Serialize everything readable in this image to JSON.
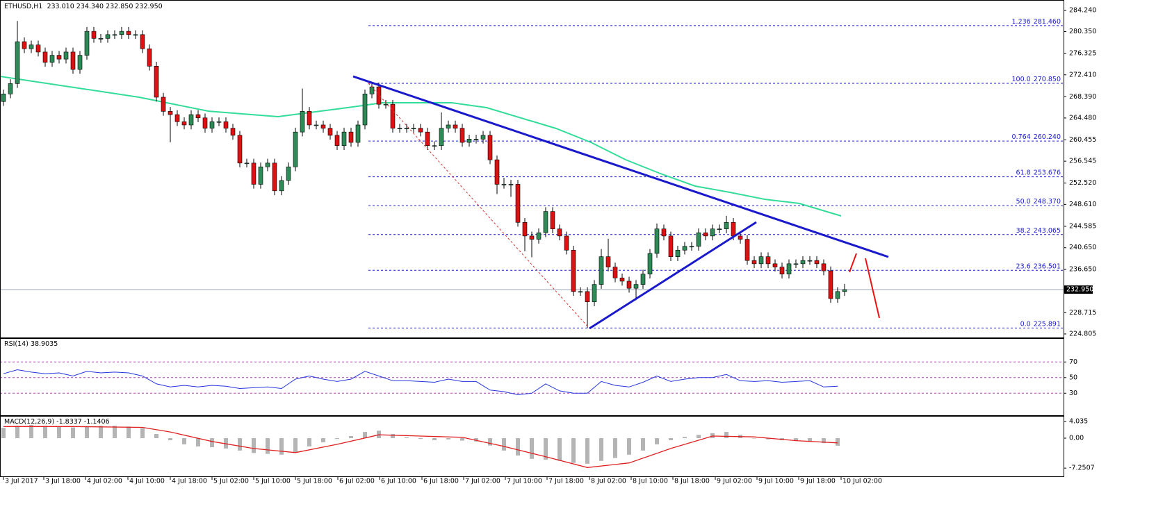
{
  "chart_data": [
    {
      "type": "candlestick",
      "title": "ETHUSD,H1",
      "subtitle": "233.010 234.340 232.850 232.950",
      "up_color": "#2e8b57",
      "down_color": "#dd1111",
      "open": [
        267.5,
        268.9,
        270.8,
        278.5,
        277.2,
        277.9,
        276.6,
        274.7,
        276.0,
        275.3,
        276.6,
        273.4,
        276.0,
        280.4,
        279.1,
        279.1,
        279.8,
        279.8,
        280.4,
        279.8,
        279.8,
        277.2,
        274.0,
        268.3,
        265.7,
        265.1,
        263.8,
        263.2,
        265.1,
        264.5,
        262.6,
        263.8,
        263.8,
        262.6,
        261.3,
        256.2,
        256.2,
        252.3,
        255.5,
        256.2,
        251.1,
        253.0,
        255.5,
        261.9,
        265.7,
        263.2,
        263.2,
        262.6,
        261.3,
        259.4,
        261.9,
        260.0,
        263.2,
        268.9,
        270.2,
        267.0,
        267.0,
        262.6,
        262.6,
        262.6,
        262.6,
        261.9,
        259.4,
        259.4,
        262.6,
        263.2,
        262.6,
        260.0,
        260.6,
        260.6,
        261.3,
        256.8,
        252.3,
        252.3,
        252.3,
        245.3,
        242.8,
        242.2,
        243.4,
        247.3,
        244.1,
        242.8,
        240.2,
        232.6,
        232.6,
        230.7,
        233.9,
        239.0,
        237.1,
        235.1,
        234.5,
        233.2,
        233.9,
        235.8,
        239.6,
        244.1,
        242.8,
        239.0,
        240.2,
        240.9,
        240.9,
        243.4,
        242.8,
        244.1,
        244.1,
        245.3,
        242.8,
        242.2,
        238.3,
        237.7,
        239.0,
        237.7,
        237.1,
        235.8,
        237.7,
        237.7,
        238.3,
        238.3,
        237.7,
        236.4,
        231.3,
        232.6
      ],
      "high": [
        269.7,
        271.6,
        282.3,
        279.3,
        278.7,
        278.7,
        277.4,
        276.8,
        276.8,
        277.4,
        277.4,
        276.8,
        281.2,
        281.2,
        279.9,
        280.6,
        280.6,
        281.2,
        281.2,
        280.6,
        280.6,
        278.0,
        274.8,
        269.1,
        266.5,
        265.9,
        264.6,
        265.9,
        265.9,
        265.3,
        264.6,
        264.6,
        264.6,
        263.4,
        262.1,
        257.0,
        257.0,
        256.3,
        257.0,
        257.0,
        253.8,
        256.3,
        262.7,
        269.9,
        266.5,
        264.0,
        264.0,
        263.4,
        262.1,
        262.7,
        262.7,
        264.0,
        269.7,
        270.9,
        271.0,
        267.8,
        267.8,
        263.4,
        263.4,
        263.4,
        263.4,
        262.7,
        260.2,
        265.5,
        264.0,
        264.0,
        263.4,
        261.4,
        261.4,
        262.1,
        262.1,
        257.6,
        253.5,
        253.1,
        253.1,
        246.1,
        243.6,
        244.2,
        248.1,
        248.1,
        244.9,
        243.6,
        241.0,
        233.4,
        233.4,
        234.7,
        240.4,
        242.3,
        237.9,
        235.9,
        235.3,
        234.7,
        236.6,
        240.4,
        245.1,
        244.9,
        243.6,
        241.0,
        241.7,
        241.7,
        244.2,
        244.2,
        244.9,
        244.9,
        246.5,
        246.1,
        243.6,
        243.0,
        239.1,
        239.8,
        239.8,
        238.5,
        237.9,
        238.5,
        238.5,
        239.1,
        239.1,
        239.1,
        238.5,
        237.2,
        233.4,
        234.0
      ],
      "low": [
        266.7,
        268.1,
        270.0,
        276.4,
        276.4,
        275.8,
        273.9,
        273.9,
        274.5,
        274.5,
        272.6,
        272.6,
        275.2,
        278.3,
        278.3,
        278.3,
        279.0,
        279.0,
        279.0,
        279.0,
        276.4,
        273.2,
        267.5,
        264.9,
        260.0,
        263.0,
        262.4,
        262.4,
        263.7,
        261.8,
        261.8,
        263.0,
        261.8,
        260.5,
        255.4,
        255.4,
        251.5,
        251.5,
        254.7,
        250.3,
        250.3,
        252.2,
        254.7,
        261.1,
        262.4,
        262.4,
        261.8,
        260.5,
        258.6,
        258.6,
        259.2,
        259.2,
        262.4,
        268.1,
        266.2,
        266.2,
        261.8,
        261.8,
        261.8,
        261.8,
        261.1,
        258.6,
        258.6,
        258.6,
        261.8,
        261.8,
        259.2,
        259.2,
        259.8,
        259.8,
        256.0,
        250.5,
        251.5,
        250.0,
        244.5,
        240.0,
        238.9,
        241.4,
        242.6,
        243.3,
        242.0,
        239.4,
        231.8,
        231.8,
        225.9,
        229.9,
        233.1,
        236.3,
        234.3,
        233.7,
        232.4,
        231.0,
        233.1,
        235.0,
        238.8,
        242.0,
        238.2,
        238.2,
        239.4,
        240.1,
        240.1,
        242.0,
        242.0,
        243.3,
        243.3,
        242.0,
        241.4,
        237.5,
        236.9,
        236.9,
        236.9,
        236.3,
        235.0,
        235.0,
        236.9,
        236.9,
        237.5,
        236.9,
        235.6,
        230.5,
        230.5,
        231.8
      ],
      "close": [
        268.9,
        270.8,
        278.5,
        277.2,
        277.9,
        276.6,
        274.7,
        276.0,
        275.3,
        276.6,
        273.4,
        276.0,
        280.4,
        279.1,
        279.1,
        279.8,
        279.8,
        280.4,
        279.8,
        279.8,
        277.2,
        274.0,
        268.3,
        265.7,
        265.1,
        263.8,
        263.2,
        265.1,
        264.5,
        262.6,
        263.8,
        263.8,
        262.6,
        261.3,
        256.2,
        256.2,
        252.3,
        255.5,
        256.2,
        251.1,
        253.0,
        255.5,
        261.9,
        265.7,
        263.2,
        263.2,
        262.6,
        261.3,
        259.4,
        261.9,
        260.0,
        263.2,
        268.9,
        270.2,
        267.0,
        267.0,
        262.6,
        262.6,
        262.6,
        262.6,
        261.9,
        259.4,
        259.4,
        262.6,
        263.2,
        262.6,
        260.0,
        260.6,
        260.6,
        261.3,
        256.8,
        252.3,
        252.3,
        252.3,
        245.3,
        242.8,
        242.2,
        243.4,
        247.3,
        244.1,
        242.8,
        240.2,
        232.6,
        232.6,
        230.7,
        233.9,
        239.0,
        237.1,
        235.1,
        234.5,
        233.2,
        233.9,
        235.8,
        239.6,
        244.1,
        242.8,
        239.0,
        240.2,
        240.9,
        240.9,
        243.4,
        242.8,
        244.1,
        244.1,
        245.3,
        242.8,
        242.2,
        238.3,
        237.7,
        239.0,
        237.7,
        237.1,
        235.8,
        237.7,
        237.7,
        238.3,
        238.3,
        237.7,
        236.4,
        231.3,
        232.6,
        232.95
      ],
      "moving_average": {
        "color": "#33dd99",
        "x": [
          -0.5,
          9.5,
          19.5,
          29.5,
          39.5,
          49.5,
          54.5,
          64.5,
          69.5,
          79.5,
          84.5,
          89.5,
          94.5,
          99.5,
          104.5,
          109.5,
          114.5,
          120.5
        ],
        "values": [
          272.12,
          270.21,
          268.3,
          265.74,
          264.72,
          266.38,
          267.28,
          267.28,
          266.38,
          262.56,
          260.01,
          256.82,
          254.27,
          251.97,
          250.82,
          249.55,
          248.78,
          246.48
        ]
      },
      "fib_color": "#1a1acc",
      "fib_levels": [
        {
          "level": "1.236",
          "price": {
            "value": 281.46,
            "label": "281.460"
          }
        },
        {
          "level": "100.0",
          "price": {
            "value": 270.85,
            "label": "270.850"
          }
        },
        {
          "level": "0.764",
          "price": {
            "value": 260.24,
            "label": "260.240"
          }
        },
        {
          "level": "61.8",
          "price": {
            "value": 253.676,
            "label": "253.676"
          }
        },
        {
          "level": "50.0",
          "price": {
            "value": 248.37,
            "label": "248.370"
          }
        },
        {
          "level": "38.2",
          "price": {
            "value": 243.065,
            "label": "243.065"
          }
        },
        {
          "level": "23.6",
          "price": {
            "value": 236.501,
            "label": "236.501"
          }
        },
        {
          "level": "0.0",
          "price": {
            "value": 225.891,
            "label": "225.891"
          }
        }
      ],
      "last_price": {
        "value": 232.95,
        "label": "232.950"
      },
      "xlim": [
        -0.5,
        152.5
      ],
      "xticks": [
        {
          "value": 0,
          "label": "3 Jul 2017"
        },
        {
          "value": 5.8,
          "label": "3 Jul 18:00"
        },
        {
          "value": 11.8,
          "label": "4 Jul 02:00"
        },
        {
          "value": 17.9,
          "label": "4 Jul 10:00"
        },
        {
          "value": 24,
          "label": "4 Jul 18:00"
        },
        {
          "value": 30,
          "label": "5 Jul 02:00"
        },
        {
          "value": 36,
          "label": "5 Jul 10:00"
        },
        {
          "value": 42,
          "label": "5 Jul 18:00"
        },
        {
          "value": 48.1,
          "label": "6 Jul 02:00"
        },
        {
          "value": 54.1,
          "label": "6 Jul 10:00"
        },
        {
          "value": 60.2,
          "label": "6 Jul 18:00"
        },
        {
          "value": 66.2,
          "label": "7 Jul 02:00"
        },
        {
          "value": 72.2,
          "label": "7 Jul 10:00"
        },
        {
          "value": 78.2,
          "label": "7 Jul 18:00"
        },
        {
          "value": 84.3,
          "label": "8 Jul 02:00"
        },
        {
          "value": 90.3,
          "label": "8 Jul 10:00"
        },
        {
          "value": 96.3,
          "label": "8 Jul 18:00"
        },
        {
          "value": 102.4,
          "label": "9 Jul 02:00"
        },
        {
          "value": 108.4,
          "label": "9 Jul 10:00"
        },
        {
          "value": 114.4,
          "label": "9 Jul 18:00"
        },
        {
          "value": 120.5,
          "label": "10 Jul 02:00"
        }
      ],
      "ylim": [
        224.16,
        286.03
      ],
      "yticks": [
        {
          "value": 284.24,
          "label": "284.240"
        },
        {
          "value": 280.35,
          "label": "280.350"
        },
        {
          "value": 276.325,
          "label": "276.325"
        },
        {
          "value": 272.41,
          "label": "272.410"
        },
        {
          "value": 268.39,
          "label": "268.390"
        },
        {
          "value": 264.48,
          "label": "264.480"
        },
        {
          "value": 260.455,
          "label": "260.455"
        },
        {
          "value": 256.545,
          "label": "256.545"
        },
        {
          "value": 252.52,
          "label": "252.520"
        },
        {
          "value": 248.61,
          "label": "248.610"
        },
        {
          "value": 244.585,
          "label": "244.585"
        },
        {
          "value": 240.65,
          "label": "240.650"
        },
        {
          "value": 236.65,
          "label": "236.650"
        },
        {
          "value": 228.715,
          "label": "228.715"
        },
        {
          "value": 224.805,
          "label": "224.805"
        }
      ]
    },
    {
      "type": "line",
      "title": "RSI(14) 38.9035",
      "color": "#2233dd",
      "level_color": "#aa44aa",
      "x": [
        0,
        2,
        4,
        6,
        8,
        10,
        12,
        14,
        16,
        18,
        20,
        22,
        24,
        26,
        28,
        30,
        32,
        34,
        36,
        38,
        40,
        42,
        44,
        46,
        48,
        50,
        52,
        54,
        56,
        58,
        60,
        62,
        64,
        66,
        68,
        70,
        72,
        74,
        76,
        78,
        80,
        82,
        84,
        86,
        88,
        90,
        92,
        94,
        96,
        98,
        100,
        102,
        104,
        106,
        108,
        110,
        112,
        114,
        116,
        118,
        120
      ],
      "values": [
        55,
        60,
        57,
        55,
        56,
        52,
        58,
        56,
        57,
        56,
        52,
        42,
        38,
        40,
        38,
        40,
        39,
        36,
        37,
        38,
        36,
        48,
        52,
        48,
        45,
        48,
        58,
        52,
        46,
        46,
        45,
        44,
        48,
        45,
        45,
        34,
        32,
        28,
        30,
        42,
        33,
        30,
        30,
        45,
        40,
        38,
        44,
        52,
        45,
        48,
        50,
        50,
        54,
        46,
        45,
        46,
        44,
        45,
        46,
        38,
        38.9
      ],
      "ylim": [
        1.8,
        99.6
      ],
      "yticks": [
        70,
        50,
        30
      ]
    },
    {
      "type": "macd",
      "title": "MACD(12,26,9) -1.8337 -1.1406",
      "histogram_color": "#b4b4b4",
      "x": [
        0,
        2,
        4,
        6,
        8,
        10,
        12,
        14,
        16,
        18,
        20,
        22,
        24,
        26,
        28,
        30,
        32,
        34,
        36,
        38,
        40,
        42,
        44,
        46,
        48,
        50,
        52,
        54,
        56,
        58,
        60,
        62,
        64,
        66,
        68,
        70,
        72,
        74,
        76,
        78,
        80,
        82,
        84,
        86,
        88,
        90,
        92,
        94,
        96,
        98,
        100,
        102,
        104,
        106,
        108,
        110,
        112,
        114,
        116,
        118,
        120
      ],
      "histogram": [
        2.5,
        3.0,
        3.2,
        3.0,
        2.8,
        2.6,
        2.8,
        3.0,
        3.0,
        2.8,
        2.4,
        1.0,
        -0.5,
        -1.5,
        -2.0,
        -2.2,
        -2.5,
        -3.0,
        -3.6,
        -3.8,
        -4.0,
        -3.5,
        -2.0,
        -1.0,
        -0.2,
        0.5,
        1.5,
        1.8,
        1.0,
        0.2,
        -0.2,
        -0.5,
        -0.3,
        -0.6,
        -0.8,
        -1.8,
        -3.0,
        -4.2,
        -5.0,
        -5.2,
        -5.5,
        -6.0,
        -6.2,
        -5.5,
        -4.8,
        -4.0,
        -3.0,
        -1.5,
        -0.5,
        0.3,
        0.8,
        1.2,
        1.5,
        0.8,
        0.0,
        -0.3,
        -0.5,
        -0.6,
        -0.8,
        -1.2,
        -1.83
      ],
      "signal": {
        "color": "#e02020",
        "x": [
          0,
          10,
          20,
          24,
          30,
          36,
          42,
          48,
          54,
          60,
          66,
          72,
          78,
          84,
          90,
          96,
          102,
          108,
          114,
          120
        ],
        "values": [
          2.8,
          2.8,
          2.6,
          1.5,
          -0.8,
          -2.5,
          -3.5,
          -1.5,
          0.8,
          0.5,
          0.2,
          -2.0,
          -4.5,
          -7.1,
          -6.0,
          -2.5,
          0.5,
          0.3,
          -0.6,
          -1.14
        ]
      },
      "ylim": [
        -9.24,
        5.21
      ],
      "yticks": [
        4.035,
        {
          "value": 0,
          "label": "0.00"
        },
        -7.2507
      ]
    }
  ]
}
